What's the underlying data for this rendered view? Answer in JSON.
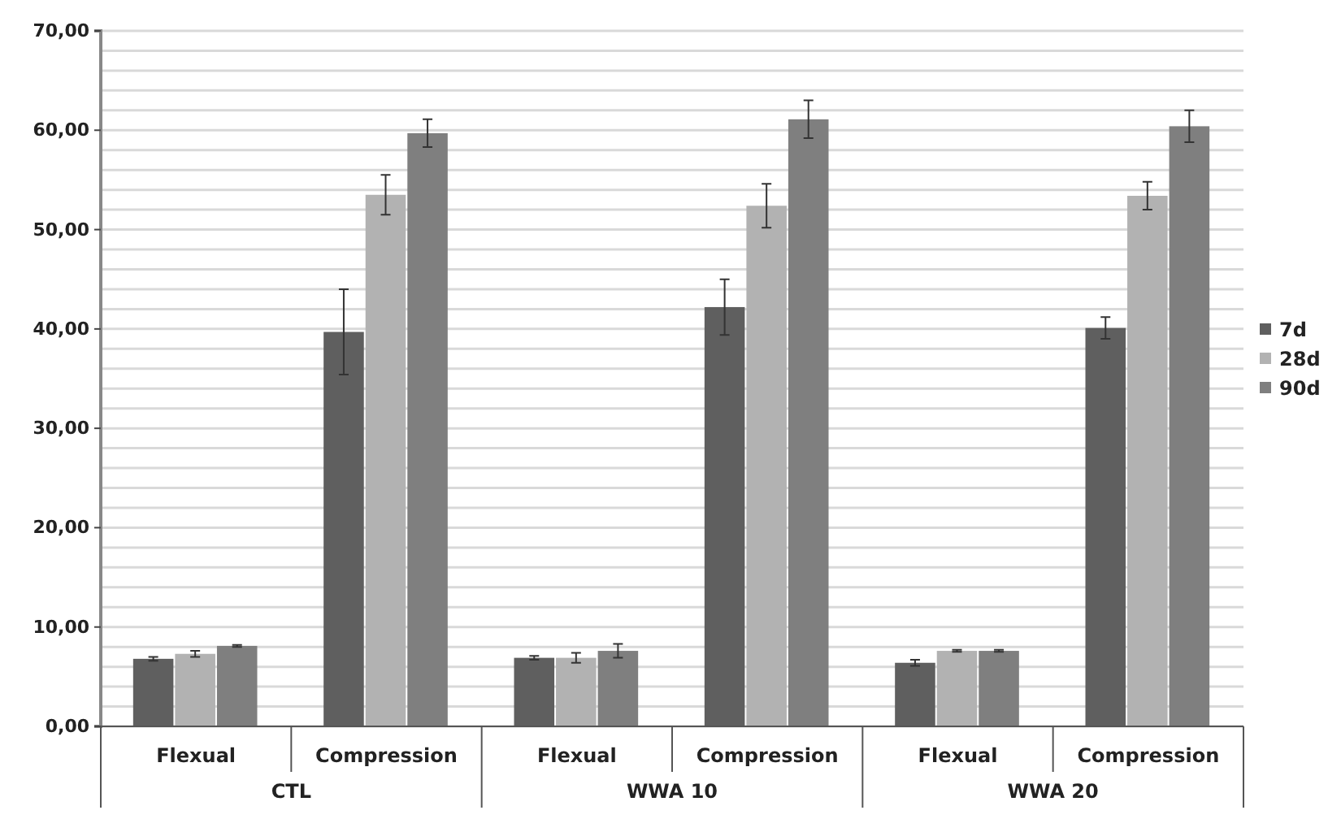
{
  "chart_data": {
    "type": "bar",
    "categories": [
      "Flexual",
      "Compression",
      "Flexual",
      "Compression",
      "Flexual",
      "Compression"
    ],
    "series": [
      {
        "name": "7d",
        "color": "#5f5f5f",
        "values": [
          6.8,
          39.7,
          6.9,
          42.2,
          6.4,
          40.1
        ],
        "errors": [
          0.2,
          4.3,
          0.2,
          2.8,
          0.3,
          1.1
        ]
      },
      {
        "name": "28d",
        "color": "#b2b2b2",
        "values": [
          7.3,
          53.5,
          6.9,
          52.4,
          7.6,
          53.4
        ],
        "errors": [
          0.3,
          2.0,
          0.5,
          2.2,
          0.1,
          1.4
        ]
      },
      {
        "name": "90d",
        "color": "#7f7f7f",
        "values": [
          8.1,
          59.7,
          7.6,
          61.1,
          7.6,
          60.4
        ],
        "errors": [
          0.1,
          1.4,
          0.7,
          1.9,
          0.1,
          1.6
        ]
      }
    ],
    "annotations": [
      "CTL",
      "WWA 10",
      "WWA 20"
    ],
    "ylim": [
      0,
      70
    ],
    "yticks": [
      {
        "value": 0,
        "label": "0,00"
      },
      {
        "value": 2,
        "label": null
      },
      {
        "value": 4,
        "label": null
      },
      {
        "value": 6,
        "label": null
      },
      {
        "value": 8,
        "label": null
      },
      {
        "value": 10,
        "label": "10,00"
      },
      {
        "value": 12,
        "label": null
      },
      {
        "value": 14,
        "label": null
      },
      {
        "value": 16,
        "label": null
      },
      {
        "value": 18,
        "label": null
      },
      {
        "value": 20,
        "label": "20,00"
      },
      {
        "value": 22,
        "label": null
      },
      {
        "value": 24,
        "label": null
      },
      {
        "value": 26,
        "label": null
      },
      {
        "value": 28,
        "label": null
      },
      {
        "value": 30,
        "label": "30,00"
      },
      {
        "value": 32,
        "label": null
      },
      {
        "value": 34,
        "label": null
      },
      {
        "value": 36,
        "label": null
      },
      {
        "value": 38,
        "label": null
      },
      {
        "value": 40,
        "label": "40,00"
      },
      {
        "value": 42,
        "label": null
      },
      {
        "value": 44,
        "label": null
      },
      {
        "value": 46,
        "label": null
      },
      {
        "value": 48,
        "label": null
      },
      {
        "value": 50,
        "label": "50,00"
      },
      {
        "value": 52,
        "label": null
      },
      {
        "value": 54,
        "label": null
      },
      {
        "value": 56,
        "label": null
      },
      {
        "value": 58,
        "label": null
      },
      {
        "value": 60,
        "label": "60,00"
      },
      {
        "value": 62,
        "label": null
      },
      {
        "value": 64,
        "label": null
      },
      {
        "value": 66,
        "label": null
      },
      {
        "value": 68,
        "label": null
      },
      {
        "value": 70,
        "label": "70,00"
      }
    ],
    "grid": "y",
    "legend": "right"
  }
}
